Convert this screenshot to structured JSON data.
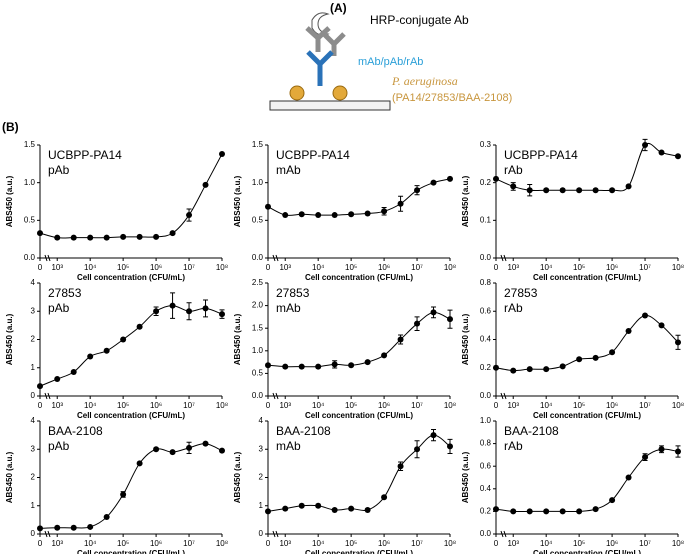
{
  "schematic": {
    "label": "(A)",
    "antibody": "HRP-conjugate Ab",
    "primary": "mAb/pAb/rAb",
    "species": "P. aeruginosa",
    "strains": "(PA14/27853/BAA-2108)"
  },
  "panel_b_label": "(B)",
  "chart_data": [
    {
      "type": "scatter",
      "title": "UCBPP-PA14",
      "subtitle": "pAb",
      "xlabel": "Cell concentration (CFU/mL)",
      "ylabel": "ABS450 (a.u.)",
      "log_x": true,
      "x": [
        0,
        1000,
        3162,
        10000,
        31623,
        100000,
        316228,
        1000000,
        3162278,
        10000000,
        31622777,
        100000000
      ],
      "values": [
        0.33,
        0.27,
        0.27,
        0.27,
        0.27,
        0.28,
        0.28,
        0.28,
        0.33,
        0.57,
        0.97,
        1.38
      ],
      "errors": [
        null,
        null,
        null,
        null,
        null,
        null,
        null,
        null,
        null,
        0.08,
        null,
        null
      ],
      "xlim": [
        300,
        100000000
      ],
      "xticks": [
        0,
        {
          "value": 1000,
          "label": "10³"
        },
        {
          "value": 10000,
          "label": "10⁴"
        },
        {
          "value": 100000,
          "label": "10⁵"
        },
        {
          "value": 1000000,
          "label": "10⁶"
        },
        {
          "value": 10000000,
          "label": "10⁷"
        },
        {
          "value": 100000000,
          "label": "10⁸"
        }
      ],
      "ylim": [
        0,
        1.5
      ],
      "yticks": [
        {
          "value": 0,
          "label": "0.0"
        },
        0.5,
        {
          "value": 1,
          "label": "1.0"
        },
        1.5
      ],
      "color": "#000000"
    },
    {
      "type": "scatter",
      "title": "UCBPP-PA14",
      "subtitle": "mAb",
      "xlabel": "Cell concentration (CFU/mL)",
      "ylabel": "ABS450 (a.u.)",
      "log_x": true,
      "x": [
        0,
        1000,
        3162,
        10000,
        31623,
        100000,
        316228,
        1000000,
        3162278,
        10000000,
        31622777,
        100000000
      ],
      "values": [
        0.68,
        0.57,
        0.58,
        0.57,
        0.57,
        0.58,
        0.59,
        0.62,
        0.72,
        0.9,
        1.0,
        1.05
      ],
      "errors": [
        null,
        null,
        null,
        null,
        null,
        null,
        null,
        0.05,
        0.1,
        0.06,
        null,
        null
      ],
      "xlim": [
        300,
        100000000
      ],
      "xticks": [
        0,
        {
          "value": 1000,
          "label": "10³"
        },
        {
          "value": 10000,
          "label": "10⁴"
        },
        {
          "value": 100000,
          "label": "10⁵"
        },
        {
          "value": 1000000,
          "label": "10⁶"
        },
        {
          "value": 10000000,
          "label": "10⁷"
        },
        {
          "value": 100000000,
          "label": "10⁸"
        }
      ],
      "ylim": [
        0,
        1.5
      ],
      "yticks": [
        {
          "value": 0,
          "label": "0.0"
        },
        0.5,
        {
          "value": 1,
          "label": "1.0"
        },
        1.5
      ],
      "color": "#000000"
    },
    {
      "type": "scatter",
      "title": "UCBPP-PA14",
      "subtitle": "rAb",
      "xlabel": "Cell concentration (CFU/mL)",
      "ylabel": "ABS450 (a.u.)",
      "log_x": true,
      "x": [
        0,
        1000,
        3162,
        10000,
        31623,
        100000,
        316228,
        1000000,
        3162278,
        10000000,
        31622777,
        100000000
      ],
      "values": [
        0.21,
        0.19,
        0.18,
        0.18,
        0.18,
        0.18,
        0.18,
        0.18,
        0.19,
        0.3,
        0.28,
        0.27
      ],
      "errors": [
        null,
        0.01,
        0.015,
        null,
        null,
        null,
        null,
        null,
        null,
        0.015,
        null,
        null
      ],
      "xlim": [
        300,
        100000000
      ],
      "xticks": [
        0,
        {
          "value": 1000,
          "label": "10³"
        },
        {
          "value": 10000,
          "label": "10⁴"
        },
        {
          "value": 100000,
          "label": "10⁵"
        },
        {
          "value": 1000000,
          "label": "10⁶"
        },
        {
          "value": 10000000,
          "label": "10⁷"
        },
        {
          "value": 100000000,
          "label": "10⁸"
        }
      ],
      "ylim": [
        0,
        0.3
      ],
      "yticks": [
        {
          "value": 0,
          "label": "0.0"
        },
        0.1,
        0.2,
        0.3
      ],
      "color": "#000000"
    },
    {
      "type": "scatter",
      "title": "27853",
      "subtitle": "pAb",
      "xlabel": "Cell concentration (CFU/mL)",
      "ylabel": "ABS450 (a.u.)",
      "log_x": true,
      "x": [
        0,
        1000,
        3162,
        10000,
        31623,
        100000,
        316228,
        1000000,
        3162278,
        10000000,
        31622777,
        100000000
      ],
      "values": [
        0.35,
        0.6,
        0.85,
        1.4,
        1.6,
        2.0,
        2.45,
        3.0,
        3.2,
        3.0,
        3.1,
        2.9
      ],
      "errors": [
        null,
        null,
        null,
        null,
        null,
        null,
        null,
        0.15,
        0.45,
        0.3,
        0.3,
        0.15
      ],
      "xlim": [
        300,
        100000000
      ],
      "xticks": [
        0,
        {
          "value": 1000,
          "label": "10³"
        },
        {
          "value": 10000,
          "label": "10⁴"
        },
        {
          "value": 100000,
          "label": "10⁵"
        },
        {
          "value": 1000000,
          "label": "10⁶"
        },
        {
          "value": 10000000,
          "label": "10⁷"
        },
        {
          "value": 100000000,
          "label": "10⁸"
        }
      ],
      "ylim": [
        0,
        4
      ],
      "yticks": [
        0,
        1,
        2,
        3,
        4
      ],
      "color": "#000000"
    },
    {
      "type": "scatter",
      "title": "27853",
      "subtitle": "mAb",
      "xlabel": "Cell concentration (CFU/mL)",
      "ylabel": "ABS450 (a.u.)",
      "log_x": true,
      "x": [
        0,
        1000,
        3162,
        10000,
        31623,
        100000,
        316228,
        1000000,
        3162278,
        10000000,
        31622777,
        100000000
      ],
      "values": [
        0.68,
        0.65,
        0.65,
        0.65,
        0.7,
        0.68,
        0.75,
        0.9,
        1.25,
        1.6,
        1.85,
        1.7
      ],
      "errors": [
        null,
        null,
        null,
        null,
        0.08,
        null,
        null,
        null,
        0.1,
        0.15,
        0.12,
        0.2
      ],
      "xlim": [
        300,
        100000000
      ],
      "xticks": [
        0,
        {
          "value": 1000,
          "label": "10³"
        },
        {
          "value": 10000,
          "label": "10⁴"
        },
        {
          "value": 100000,
          "label": "10⁵"
        },
        {
          "value": 1000000,
          "label": "10⁶"
        },
        {
          "value": 10000000,
          "label": "10⁷"
        },
        {
          "value": 100000000,
          "label": "10⁸"
        }
      ],
      "ylim": [
        0,
        2.5
      ],
      "yticks": [
        {
          "value": 0,
          "label": "0.0"
        },
        0.5,
        {
          "value": 1,
          "label": "1.0"
        },
        1.5,
        {
          "value": 2,
          "label": "2.0"
        },
        2.5
      ],
      "color": "#000000"
    },
    {
      "type": "scatter",
      "title": "27853",
      "subtitle": "rAb",
      "xlabel": "Cell concentration (CFU/mL)",
      "ylabel": "ABS450 (a.u.)",
      "log_x": true,
      "x": [
        0,
        1000,
        3162,
        10000,
        31623,
        100000,
        316228,
        1000000,
        3162278,
        10000000,
        31622777,
        100000000
      ],
      "values": [
        0.2,
        0.18,
        0.19,
        0.19,
        0.21,
        0.26,
        0.27,
        0.31,
        0.46,
        0.57,
        0.5,
        0.38
      ],
      "errors": [
        null,
        null,
        null,
        null,
        null,
        null,
        null,
        null,
        null,
        null,
        null,
        0.05
      ],
      "xlim": [
        300,
        100000000
      ],
      "xticks": [
        0,
        {
          "value": 1000,
          "label": "10³"
        },
        {
          "value": 10000,
          "label": "10⁴"
        },
        {
          "value": 100000,
          "label": "10⁵"
        },
        {
          "value": 1000000,
          "label": "10⁶"
        },
        {
          "value": 10000000,
          "label": "10⁷"
        },
        {
          "value": 100000000,
          "label": "10⁸"
        }
      ],
      "ylim": [
        0,
        0.8
      ],
      "yticks": [
        {
          "value": 0,
          "label": "0.0"
        },
        0.2,
        0.4,
        0.6,
        0.8
      ],
      "color": "#000000"
    },
    {
      "type": "scatter",
      "title": "BAA-2108",
      "subtitle": "pAb",
      "xlabel": "Cell concentration (CFU/mL)",
      "ylabel": "ABS450 (a.u.)",
      "log_x": true,
      "x": [
        0,
        1000,
        3162,
        10000,
        31623,
        100000,
        316228,
        1000000,
        3162278,
        10000000,
        31622777,
        100000000
      ],
      "values": [
        0.2,
        0.22,
        0.22,
        0.25,
        0.6,
        1.4,
        2.5,
        3.0,
        2.9,
        3.05,
        3.2,
        2.95
      ],
      "errors": [
        null,
        null,
        null,
        null,
        null,
        0.1,
        null,
        null,
        null,
        0.2,
        null,
        null
      ],
      "xlim": [
        300,
        100000000
      ],
      "xticks": [
        0,
        {
          "value": 1000,
          "label": "10³"
        },
        {
          "value": 10000,
          "label": "10⁴"
        },
        {
          "value": 100000,
          "label": "10⁵"
        },
        {
          "value": 1000000,
          "label": "10⁶"
        },
        {
          "value": 10000000,
          "label": "10⁷"
        },
        {
          "value": 100000000,
          "label": "10⁸"
        }
      ],
      "ylim": [
        0,
        4
      ],
      "yticks": [
        0,
        1,
        2,
        3,
        4
      ],
      "color": "#000000"
    },
    {
      "type": "scatter",
      "title": "BAA-2108",
      "subtitle": "mAb",
      "xlabel": "Cell concentration (CFU/mL)",
      "ylabel": "ABS450 (a.u.)",
      "log_x": true,
      "x": [
        0,
        1000,
        3162,
        10000,
        31623,
        100000,
        316228,
        1000000,
        3162278,
        10000000,
        31622777,
        100000000
      ],
      "values": [
        0.8,
        0.9,
        1.0,
        1.0,
        0.85,
        0.9,
        0.85,
        1.3,
        2.4,
        3.0,
        3.5,
        3.1
      ],
      "errors": [
        null,
        null,
        null,
        null,
        null,
        null,
        null,
        null,
        0.15,
        0.3,
        0.2,
        0.25
      ],
      "xlim": [
        300,
        100000000
      ],
      "xticks": [
        0,
        {
          "value": 1000,
          "label": "10³"
        },
        {
          "value": 10000,
          "label": "10⁴"
        },
        {
          "value": 100000,
          "label": "10⁵"
        },
        {
          "value": 1000000,
          "label": "10⁶"
        },
        {
          "value": 10000000,
          "label": "10⁷"
        },
        {
          "value": 100000000,
          "label": "10⁸"
        }
      ],
      "ylim": [
        0,
        4
      ],
      "yticks": [
        0,
        1,
        2,
        3,
        4
      ],
      "color": "#000000"
    },
    {
      "type": "scatter",
      "title": "BAA-2108",
      "subtitle": "rAb",
      "xlabel": "Cell concentration (CFU/mL)",
      "ylabel": "ABS450 (a.u.)",
      "log_x": true,
      "x": [
        0,
        1000,
        3162,
        10000,
        31623,
        100000,
        316228,
        1000000,
        3162278,
        10000000,
        31622777,
        100000000
      ],
      "values": [
        0.22,
        0.2,
        0.2,
        0.2,
        0.2,
        0.2,
        0.22,
        0.3,
        0.5,
        0.68,
        0.75,
        0.73
      ],
      "errors": [
        null,
        null,
        null,
        null,
        null,
        null,
        null,
        null,
        null,
        0.03,
        0.03,
        0.05
      ],
      "xlim": [
        300,
        100000000
      ],
      "xticks": [
        0,
        {
          "value": 1000,
          "label": "10³"
        },
        {
          "value": 10000,
          "label": "10⁴"
        },
        {
          "value": 100000,
          "label": "10⁵"
        },
        {
          "value": 1000000,
          "label": "10⁶"
        },
        {
          "value": 10000000,
          "label": "10⁷"
        },
        {
          "value": 100000000,
          "label": "10⁸"
        }
      ],
      "ylim": [
        0,
        1
      ],
      "yticks": [
        {
          "value": 0,
          "label": "0.0"
        },
        0.2,
        0.4,
        0.6,
        0.8,
        {
          "value": 1,
          "label": "1.0"
        }
      ],
      "color": "#000000"
    }
  ]
}
